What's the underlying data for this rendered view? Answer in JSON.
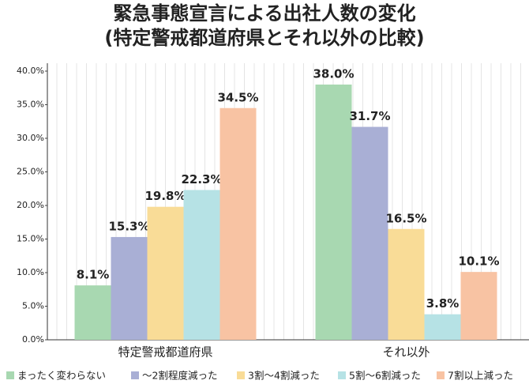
{
  "chart_data": {
    "type": "bar",
    "title": "緊急事態宣言による出社人数の変化",
    "subtitle": "(特定警戒都道府県とそれ以外の比較)",
    "categories": [
      "特定警戒都道府県",
      "それ以外"
    ],
    "series": [
      {
        "name": "まったく変わらない",
        "color": "#a8d8b1",
        "values": [
          8.1,
          38.0
        ],
        "value_labels": [
          "8.1%",
          "38.0%"
        ]
      },
      {
        "name": "～2割程度減った",
        "color": "#a9afd5",
        "values": [
          15.3,
          31.7
        ],
        "value_labels": [
          "15.3%",
          "31.7%"
        ]
      },
      {
        "name": "3割～4割減った",
        "color": "#f9dc97",
        "values": [
          19.8,
          16.5
        ],
        "value_labels": [
          "19.8%",
          "16.5%"
        ]
      },
      {
        "name": "5割～6割減った",
        "color": "#b6e2e5",
        "values": [
          22.3,
          3.8
        ],
        "value_labels": [
          "22.3%",
          "3.8%"
        ]
      },
      {
        "name": "7割以上減った",
        "color": "#f8c3a3",
        "values": [
          34.5,
          10.1
        ],
        "value_labels": [
          "34.5%",
          "10.1%"
        ]
      }
    ],
    "ylim": [
      0,
      40
    ],
    "yticks": [
      {
        "value": 0,
        "label": "0.0%"
      },
      {
        "value": 5,
        "label": "5.0%"
      },
      {
        "value": 10,
        "label": "10.0%"
      },
      {
        "value": 15,
        "label": "15.0%"
      },
      {
        "value": 20,
        "label": "20.0%"
      },
      {
        "value": 25,
        "label": "25.0%"
      },
      {
        "value": 30,
        "label": "30.0%"
      },
      {
        "value": 35,
        "label": "35.0%"
      },
      {
        "value": 40,
        "label": "40.0%"
      }
    ],
    "legend": "bottom"
  }
}
